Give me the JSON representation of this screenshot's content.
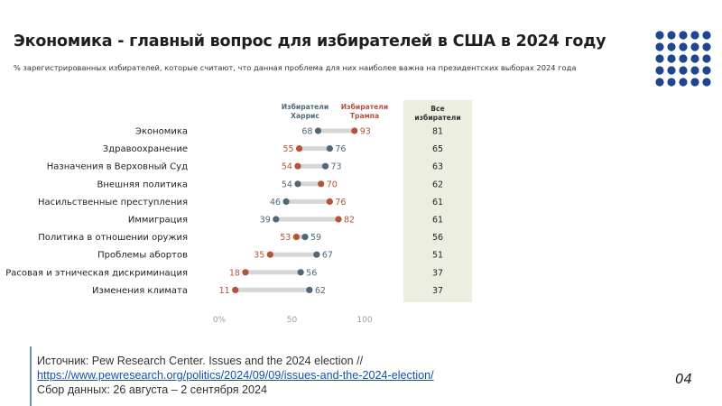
{
  "header": {
    "title": "Экономика - главный вопрос для избирателей в США в 2024 году",
    "subtitle": "% зарегистрированных избирателей, которые считают, что данная проблема для них наиболее важна на президентских выборах 2024 года"
  },
  "colors": {
    "harris": "#4e6878",
    "trump": "#b5523b",
    "connector": "#d6d6d6",
    "all_column_bg": "#eceee0",
    "brand_dots": "#1f4591"
  },
  "chart_data": {
    "type": "dot",
    "categories": [
      "Экономика",
      "Здравоохранение",
      "Назначения в Верховный Суд",
      "Внешняя политика",
      "Насильственные преступления",
      "Иммиграция",
      "Политика в отношении оружия",
      "Проблемы абортов",
      "Расовая и этническая дискриминация",
      "Изменения климата"
    ],
    "series": [
      {
        "name": "Избиратели Харрис",
        "values": [
          68,
          76,
          73,
          54,
          46,
          39,
          59,
          67,
          56,
          62
        ]
      },
      {
        "name": "Избиратели Трампа",
        "values": [
          93,
          55,
          54,
          70,
          76,
          82,
          53,
          35,
          18,
          11
        ]
      }
    ],
    "all_voters": {
      "name": "Все избиратели",
      "values": [
        81,
        65,
        63,
        62,
        61,
        61,
        56,
        51,
        37,
        37
      ]
    },
    "x_ticks": [
      "0%",
      "50",
      "100"
    ],
    "xlim": [
      0,
      100
    ],
    "legend_position": "top"
  },
  "footer": {
    "source_line1": "Источник: Pew Research Center. Issues and the 2024 election //",
    "source_link": "https://www.pewresearch.org/politics/2024/09/09/issues-and-the-2024-election/",
    "source_line3": "Сбор данных: 26 августа – 2 сентября 2024",
    "page_number": "04"
  }
}
